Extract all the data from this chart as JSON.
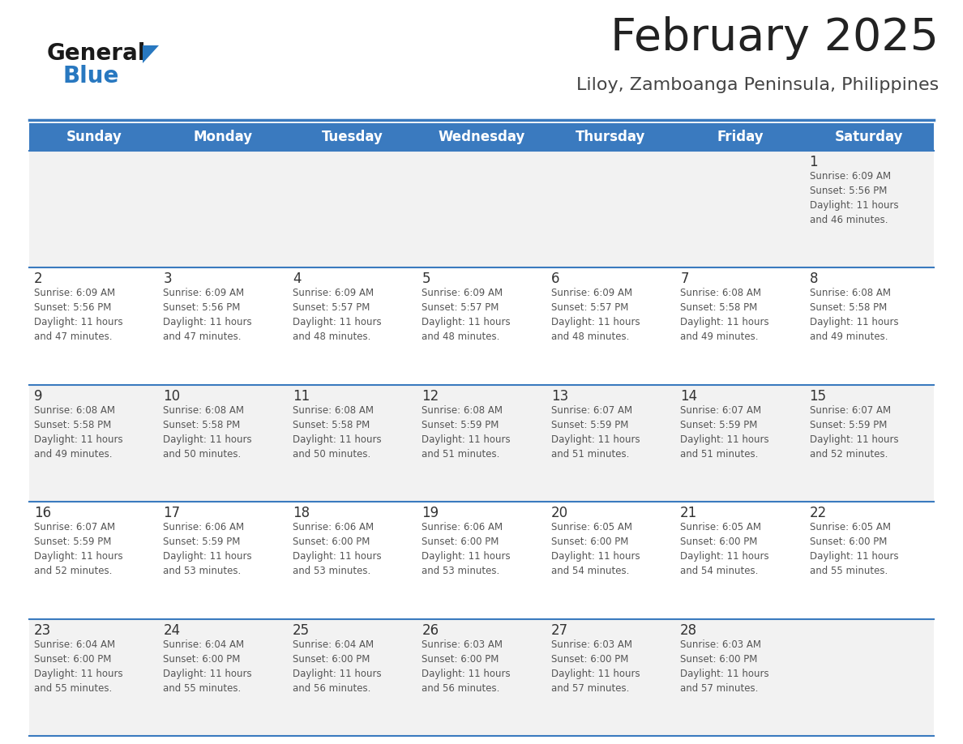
{
  "title": "February 2025",
  "subtitle": "Liloy, Zamboanga Peninsula, Philippines",
  "days_of_week": [
    "Sunday",
    "Monday",
    "Tuesday",
    "Wednesday",
    "Thursday",
    "Friday",
    "Saturday"
  ],
  "header_bg": "#3a7abf",
  "header_text": "#ffffff",
  "row_bg_even": "#f2f2f2",
  "row_bg_odd": "#ffffff",
  "separator_color": "#3a7abf",
  "day_number_color": "#333333",
  "cell_text_color": "#555555",
  "title_color": "#222222",
  "subtitle_color": "#444444",
  "calendar_data": [
    {
      "day": 1,
      "col": 6,
      "row": 0,
      "sunrise": "6:09 AM",
      "sunset": "5:56 PM",
      "daylight_hours": 11,
      "daylight_minutes": 46
    },
    {
      "day": 2,
      "col": 0,
      "row": 1,
      "sunrise": "6:09 AM",
      "sunset": "5:56 PM",
      "daylight_hours": 11,
      "daylight_minutes": 47
    },
    {
      "day": 3,
      "col": 1,
      "row": 1,
      "sunrise": "6:09 AM",
      "sunset": "5:56 PM",
      "daylight_hours": 11,
      "daylight_minutes": 47
    },
    {
      "day": 4,
      "col": 2,
      "row": 1,
      "sunrise": "6:09 AM",
      "sunset": "5:57 PM",
      "daylight_hours": 11,
      "daylight_minutes": 48
    },
    {
      "day": 5,
      "col": 3,
      "row": 1,
      "sunrise": "6:09 AM",
      "sunset": "5:57 PM",
      "daylight_hours": 11,
      "daylight_minutes": 48
    },
    {
      "day": 6,
      "col": 4,
      "row": 1,
      "sunrise": "6:09 AM",
      "sunset": "5:57 PM",
      "daylight_hours": 11,
      "daylight_minutes": 48
    },
    {
      "day": 7,
      "col": 5,
      "row": 1,
      "sunrise": "6:08 AM",
      "sunset": "5:58 PM",
      "daylight_hours": 11,
      "daylight_minutes": 49
    },
    {
      "day": 8,
      "col": 6,
      "row": 1,
      "sunrise": "6:08 AM",
      "sunset": "5:58 PM",
      "daylight_hours": 11,
      "daylight_minutes": 49
    },
    {
      "day": 9,
      "col": 0,
      "row": 2,
      "sunrise": "6:08 AM",
      "sunset": "5:58 PM",
      "daylight_hours": 11,
      "daylight_minutes": 49
    },
    {
      "day": 10,
      "col": 1,
      "row": 2,
      "sunrise": "6:08 AM",
      "sunset": "5:58 PM",
      "daylight_hours": 11,
      "daylight_minutes": 50
    },
    {
      "day": 11,
      "col": 2,
      "row": 2,
      "sunrise": "6:08 AM",
      "sunset": "5:58 PM",
      "daylight_hours": 11,
      "daylight_minutes": 50
    },
    {
      "day": 12,
      "col": 3,
      "row": 2,
      "sunrise": "6:08 AM",
      "sunset": "5:59 PM",
      "daylight_hours": 11,
      "daylight_minutes": 51
    },
    {
      "day": 13,
      "col": 4,
      "row": 2,
      "sunrise": "6:07 AM",
      "sunset": "5:59 PM",
      "daylight_hours": 11,
      "daylight_minutes": 51
    },
    {
      "day": 14,
      "col": 5,
      "row": 2,
      "sunrise": "6:07 AM",
      "sunset": "5:59 PM",
      "daylight_hours": 11,
      "daylight_minutes": 51
    },
    {
      "day": 15,
      "col": 6,
      "row": 2,
      "sunrise": "6:07 AM",
      "sunset": "5:59 PM",
      "daylight_hours": 11,
      "daylight_minutes": 52
    },
    {
      "day": 16,
      "col": 0,
      "row": 3,
      "sunrise": "6:07 AM",
      "sunset": "5:59 PM",
      "daylight_hours": 11,
      "daylight_minutes": 52
    },
    {
      "day": 17,
      "col": 1,
      "row": 3,
      "sunrise": "6:06 AM",
      "sunset": "5:59 PM",
      "daylight_hours": 11,
      "daylight_minutes": 53
    },
    {
      "day": 18,
      "col": 2,
      "row": 3,
      "sunrise": "6:06 AM",
      "sunset": "6:00 PM",
      "daylight_hours": 11,
      "daylight_minutes": 53
    },
    {
      "day": 19,
      "col": 3,
      "row": 3,
      "sunrise": "6:06 AM",
      "sunset": "6:00 PM",
      "daylight_hours": 11,
      "daylight_minutes": 53
    },
    {
      "day": 20,
      "col": 4,
      "row": 3,
      "sunrise": "6:05 AM",
      "sunset": "6:00 PM",
      "daylight_hours": 11,
      "daylight_minutes": 54
    },
    {
      "day": 21,
      "col": 5,
      "row": 3,
      "sunrise": "6:05 AM",
      "sunset": "6:00 PM",
      "daylight_hours": 11,
      "daylight_minutes": 54
    },
    {
      "day": 22,
      "col": 6,
      "row": 3,
      "sunrise": "6:05 AM",
      "sunset": "6:00 PM",
      "daylight_hours": 11,
      "daylight_minutes": 55
    },
    {
      "day": 23,
      "col": 0,
      "row": 4,
      "sunrise": "6:04 AM",
      "sunset": "6:00 PM",
      "daylight_hours": 11,
      "daylight_minutes": 55
    },
    {
      "day": 24,
      "col": 1,
      "row": 4,
      "sunrise": "6:04 AM",
      "sunset": "6:00 PM",
      "daylight_hours": 11,
      "daylight_minutes": 55
    },
    {
      "day": 25,
      "col": 2,
      "row": 4,
      "sunrise": "6:04 AM",
      "sunset": "6:00 PM",
      "daylight_hours": 11,
      "daylight_minutes": 56
    },
    {
      "day": 26,
      "col": 3,
      "row": 4,
      "sunrise": "6:03 AM",
      "sunset": "6:00 PM",
      "daylight_hours": 11,
      "daylight_minutes": 56
    },
    {
      "day": 27,
      "col": 4,
      "row": 4,
      "sunrise": "6:03 AM",
      "sunset": "6:00 PM",
      "daylight_hours": 11,
      "daylight_minutes": 57
    },
    {
      "day": 28,
      "col": 5,
      "row": 4,
      "sunrise": "6:03 AM",
      "sunset": "6:00 PM",
      "daylight_hours": 11,
      "daylight_minutes": 57
    }
  ],
  "num_rows": 5,
  "num_cols": 7
}
